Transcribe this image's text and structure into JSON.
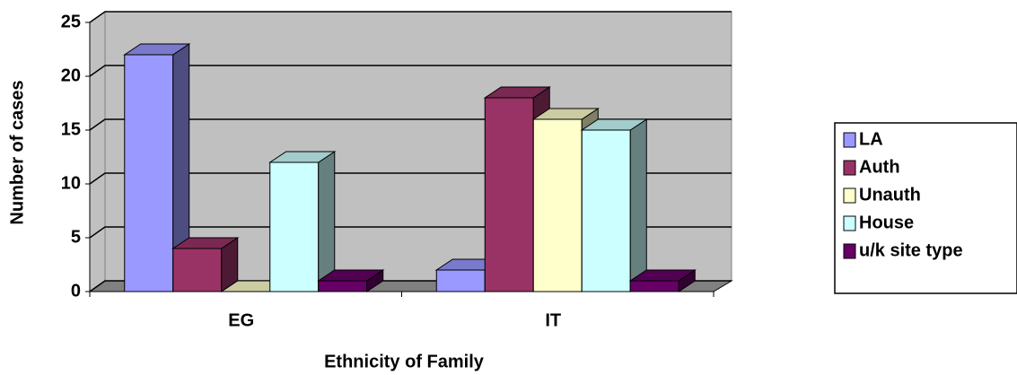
{
  "chart_data": {
    "type": "bar3d",
    "x_label": "Ethnicity of Family",
    "y_label": "Number of cases",
    "categories": [
      "EG",
      "IT"
    ],
    "series": [
      {
        "name": "LA",
        "color": "#9999ff",
        "values": [
          22,
          2
        ]
      },
      {
        "name": "Auth",
        "color": "#993366",
        "values": [
          4,
          18
        ]
      },
      {
        "name": "Unauth",
        "color": "#ffffcc",
        "values": [
          0,
          16
        ]
      },
      {
        "name": "House",
        "color": "#ccffff",
        "values": [
          12,
          15
        ]
      },
      {
        "name": "u/k site type",
        "color": "#660066",
        "values": [
          1,
          1
        ]
      }
    ],
    "ylim": [
      0,
      25
    ],
    "yticks": [
      0,
      5,
      10,
      15,
      20,
      25
    ],
    "grid": true,
    "legend": "right"
  }
}
